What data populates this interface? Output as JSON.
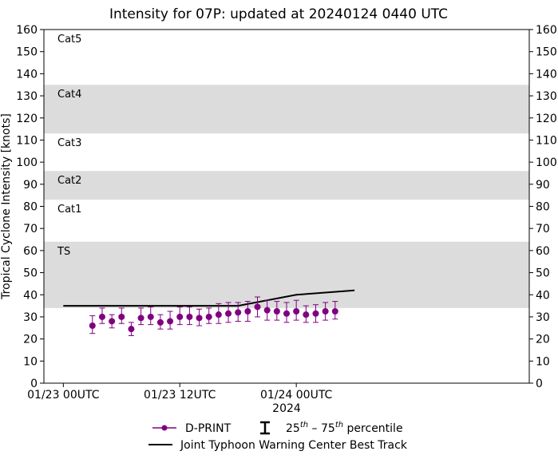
{
  "chart_data": {
    "type": "scatter",
    "title": "Intensity for 07P: updated at 20240124 0440 UTC",
    "xlabel": "2024",
    "ylabel": "Tropical Cyclone Intensity [knots]",
    "xlim_hours": [
      -2,
      48
    ],
    "ylim": [
      0,
      160
    ],
    "y_ticks": [
      0,
      10,
      20,
      30,
      40,
      50,
      60,
      70,
      80,
      90,
      100,
      110,
      120,
      130,
      140,
      150,
      160
    ],
    "x_ticks": [
      {
        "hour": 0,
        "label": "01/23 00UTC"
      },
      {
        "hour": 12,
        "label": "01/23 12UTC"
      },
      {
        "hour": 24,
        "label": "01/24 00UTC"
      }
    ],
    "category_bands": [
      {
        "label": "TS",
        "ymin": 34,
        "ymax": 64,
        "shaded": true
      },
      {
        "label": "Cat1",
        "ymin": 64,
        "ymax": 83,
        "shaded": false
      },
      {
        "label": "Cat2",
        "ymin": 83,
        "ymax": 96,
        "shaded": true
      },
      {
        "label": "Cat3",
        "ymin": 96,
        "ymax": 113,
        "shaded": false
      },
      {
        "label": "Cat4",
        "ymin": 113,
        "ymax": 135,
        "shaded": true
      },
      {
        "label": "Cat5",
        "ymin": 135,
        "ymax": 160,
        "shaded": false
      }
    ],
    "series": [
      {
        "name": "D-PRINT",
        "color": "#800080",
        "points": [
          {
            "x": 3.0,
            "y": 26.0,
            "p25": 22.5,
            "p75": 30.5
          },
          {
            "x": 4.0,
            "y": 30.0,
            "p25": 27.0,
            "p75": 34.0
          },
          {
            "x": 5.0,
            "y": 28.0,
            "p25": 25.0,
            "p75": 31.0
          },
          {
            "x": 6.0,
            "y": 30.0,
            "p25": 27.0,
            "p75": 34.0
          },
          {
            "x": 7.0,
            "y": 24.5,
            "p25": 21.5,
            "p75": 27.5
          },
          {
            "x": 8.0,
            "y": 29.5,
            "p25": 26.5,
            "p75": 34.0
          },
          {
            "x": 9.0,
            "y": 30.0,
            "p25": 26.5,
            "p75": 34.5
          },
          {
            "x": 10.0,
            "y": 27.5,
            "p25": 24.5,
            "p75": 31.0
          },
          {
            "x": 11.0,
            "y": 28.0,
            "p25": 24.5,
            "p75": 32.5
          },
          {
            "x": 12.0,
            "y": 30.0,
            "p25": 26.5,
            "p75": 34.5
          },
          {
            "x": 13.0,
            "y": 30.0,
            "p25": 26.5,
            "p75": 34.5
          },
          {
            "x": 14.0,
            "y": 29.5,
            "p25": 26.0,
            "p75": 33.5
          },
          {
            "x": 15.0,
            "y": 30.0,
            "p25": 27.0,
            "p75": 34.0
          },
          {
            "x": 16.0,
            "y": 31.0,
            "p25": 27.0,
            "p75": 36.0
          },
          {
            "x": 17.0,
            "y": 31.5,
            "p25": 27.5,
            "p75": 36.5
          },
          {
            "x": 18.0,
            "y": 32.0,
            "p25": 28.0,
            "p75": 36.5
          },
          {
            "x": 19.0,
            "y": 32.5,
            "p25": 28.0,
            "p75": 37.0
          },
          {
            "x": 20.0,
            "y": 34.5,
            "p25": 30.0,
            "p75": 39.0
          },
          {
            "x": 21.0,
            "y": 33.0,
            "p25": 28.5,
            "p75": 37.5
          },
          {
            "x": 22.0,
            "y": 32.5,
            "p25": 28.5,
            "p75": 37.0
          },
          {
            "x": 23.0,
            "y": 31.5,
            "p25": 27.5,
            "p75": 36.5
          },
          {
            "x": 24.0,
            "y": 32.5,
            "p25": 28.5,
            "p75": 37.5
          },
          {
            "x": 25.0,
            "y": 31.0,
            "p25": 27.5,
            "p75": 35.0
          },
          {
            "x": 26.0,
            "y": 31.5,
            "p25": 27.5,
            "p75": 35.5
          },
          {
            "x": 27.0,
            "y": 32.5,
            "p25": 28.5,
            "p75": 36.5
          },
          {
            "x": 28.0,
            "y": 32.5,
            "p25": 29.0,
            "p75": 37.0
          }
        ]
      },
      {
        "name": "Joint Typhoon Warning Center Best Track",
        "color": "#000000",
        "points": [
          {
            "x": 0,
            "y": 35
          },
          {
            "x": 18,
            "y": 35
          },
          {
            "x": 24,
            "y": 40
          },
          {
            "x": 30,
            "y": 42
          }
        ]
      }
    ],
    "legend": {
      "placement": "bottom-center",
      "dprint_label": "D-PRINT",
      "percentile_base1": "25",
      "percentile_sup": "th",
      "percentile_dash": " – ",
      "percentile_base2": "75",
      "percentile_word": " percentile",
      "jtwc_label": "Joint Typhoon Warning Center Best Track"
    },
    "grid": false
  }
}
